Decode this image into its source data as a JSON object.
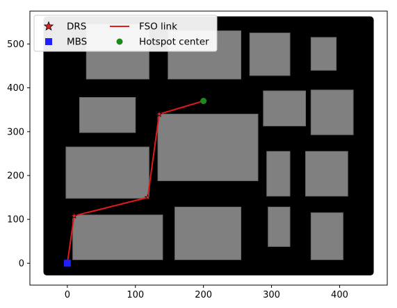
{
  "chart_data": {
    "type": "scatter",
    "title": "",
    "xlabel": "",
    "ylabel": "",
    "xlim": [
      -55,
      470
    ],
    "ylim": [
      -50,
      575
    ],
    "x_ticks": [
      0,
      100,
      200,
      300,
      400
    ],
    "y_ticks": [
      0,
      100,
      200,
      300,
      400,
      500
    ],
    "grid": false,
    "legend": "top-left",
    "background_region": {
      "x": [
        -30,
        445
      ],
      "y": [
        -20,
        555
      ],
      "color": "#000000"
    },
    "buildings": [
      {
        "x": [
          28,
          120
        ],
        "y": [
          420,
          545
        ]
      },
      {
        "x": [
          148,
          255
        ],
        "y": [
          420,
          530
        ]
      },
      {
        "x": [
          268,
          327
        ],
        "y": [
          428,
          525
        ]
      },
      {
        "x": [
          358,
          395
        ],
        "y": [
          440,
          515
        ]
      },
      {
        "x": [
          18,
          100
        ],
        "y": [
          298,
          378
        ]
      },
      {
        "x": [
          288,
          350
        ],
        "y": [
          313,
          393
        ]
      },
      {
        "x": [
          358,
          420
        ],
        "y": [
          293,
          395
        ]
      },
      {
        "x": [
          -2,
          120
        ],
        "y": [
          148,
          265
        ]
      },
      {
        "x": [
          133,
          280
        ],
        "y": [
          188,
          340
        ]
      },
      {
        "x": [
          293,
          327
        ],
        "y": [
          153,
          255
        ]
      },
      {
        "x": [
          350,
          412
        ],
        "y": [
          153,
          255
        ]
      },
      {
        "x": [
          8,
          140
        ],
        "y": [
          8,
          110
        ]
      },
      {
        "x": [
          158,
          255
        ],
        "y": [
          8,
          128
        ]
      },
      {
        "x": [
          295,
          327
        ],
        "y": [
          38,
          128
        ]
      },
      {
        "x": [
          358,
          405
        ],
        "y": [
          8,
          115
        ]
      }
    ],
    "series": [
      {
        "name": "DRS",
        "marker": "star",
        "color": "#d62728",
        "x": [
          10,
          118,
          135
        ],
        "y": [
          108,
          150,
          340
        ]
      },
      {
        "name": "MBS",
        "marker": "square",
        "color": "#1f1fff",
        "x": [
          0
        ],
        "y": [
          0
        ]
      },
      {
        "name": "FSO link",
        "marker": "line",
        "color": "#e31a1c",
        "x": [
          0,
          10,
          118,
          135,
          200
        ],
        "y": [
          0,
          108,
          150,
          340,
          370
        ]
      },
      {
        "name": "Hotspot center",
        "marker": "circle",
        "color": "#1a8c1a",
        "x": [
          200
        ],
        "y": [
          370
        ]
      }
    ]
  },
  "legend": {
    "items": [
      "DRS",
      "MBS",
      "FSO link",
      "Hotspot center"
    ]
  },
  "colors": {
    "background_area": "#000000",
    "building": "#808080",
    "building_edge": "#6a6a6a"
  }
}
